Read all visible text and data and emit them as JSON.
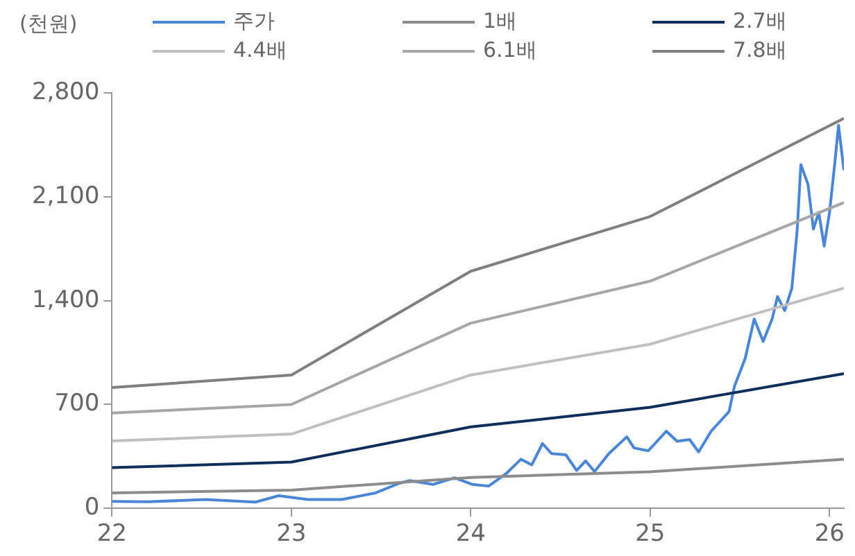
{
  "chart_data": {
    "type": "line",
    "ylabel": "(천원)",
    "legend": "top",
    "grid": false,
    "marker": "none",
    "line_style": "solid",
    "xlim": [
      22,
      26.08
    ],
    "xticks": [
      22,
      23,
      24,
      25,
      26
    ],
    "ylim": [
      0,
      2800
    ],
    "yticks": [
      0,
      {
        "value": 700,
        "label": "700"
      },
      {
        "value": 1400,
        "label": "1,400"
      },
      {
        "value": 2100,
        "label": "2,100"
      },
      {
        "value": 2800,
        "label": "2,800"
      }
    ],
    "series": [
      {
        "name": "주가",
        "color": "#4a86d4",
        "x": [
          22.0,
          22.2,
          22.52,
          22.8,
          22.93,
          23.09,
          23.28,
          23.47,
          23.6,
          23.66,
          23.79,
          23.91,
          24.01,
          24.1,
          24.2,
          24.28,
          24.34,
          24.4,
          24.45,
          24.53,
          24.59,
          24.64,
          24.69,
          24.77,
          24.87,
          24.91,
          24.99,
          25.09,
          25.15,
          25.22,
          25.27,
          25.34,
          25.44,
          25.47,
          25.53,
          25.58,
          25.63,
          25.68,
          25.71,
          25.75,
          25.79,
          25.82,
          25.84,
          25.88,
          25.91,
          25.94,
          25.97,
          26.0,
          26.03,
          26.05,
          26.08
        ],
        "values": [
          47,
          44,
          59,
          42,
          85,
          59,
          59,
          104,
          168,
          187,
          161,
          206,
          161,
          150,
          237,
          331,
          293,
          437,
          369,
          361,
          255,
          320,
          248,
          369,
          482,
          407,
          388,
          520,
          452,
          464,
          380,
          520,
          653,
          823,
          1012,
          1277,
          1126,
          1277,
          1428,
          1334,
          1485,
          1883,
          2318,
          2185,
          1883,
          1996,
          1769,
          1996,
          2337,
          2583,
          2280
        ]
      },
      {
        "name": "1배",
        "color": "#8c8c8c",
        "x": [
          22,
          23,
          24,
          25,
          26.08
        ],
        "values": [
          104,
          123,
          208,
          246,
          331
        ]
      },
      {
        "name": "2.7배",
        "color": "#0f2f5a",
        "x": [
          22,
          23,
          24,
          25,
          26.08
        ],
        "values": [
          274,
          312,
          549,
          681,
          908
        ]
      },
      {
        "name": "4.4배",
        "color": "#c0c0c0",
        "x": [
          22,
          23,
          24,
          25,
          26.08
        ],
        "values": [
          454,
          501,
          899,
          1107,
          1485
        ]
      },
      {
        "name": "6.1배",
        "color": "#a6a6a6",
        "x": [
          22,
          23,
          24,
          25,
          26.08
        ],
        "values": [
          643,
          700,
          1249,
          1532,
          2062
        ]
      },
      {
        "name": "7.8배",
        "color": "#7f7f7f",
        "x": [
          22,
          23,
          24,
          25,
          26.08
        ],
        "values": [
          814,
          899,
          1599,
          1968,
          2630
        ]
      }
    ]
  }
}
